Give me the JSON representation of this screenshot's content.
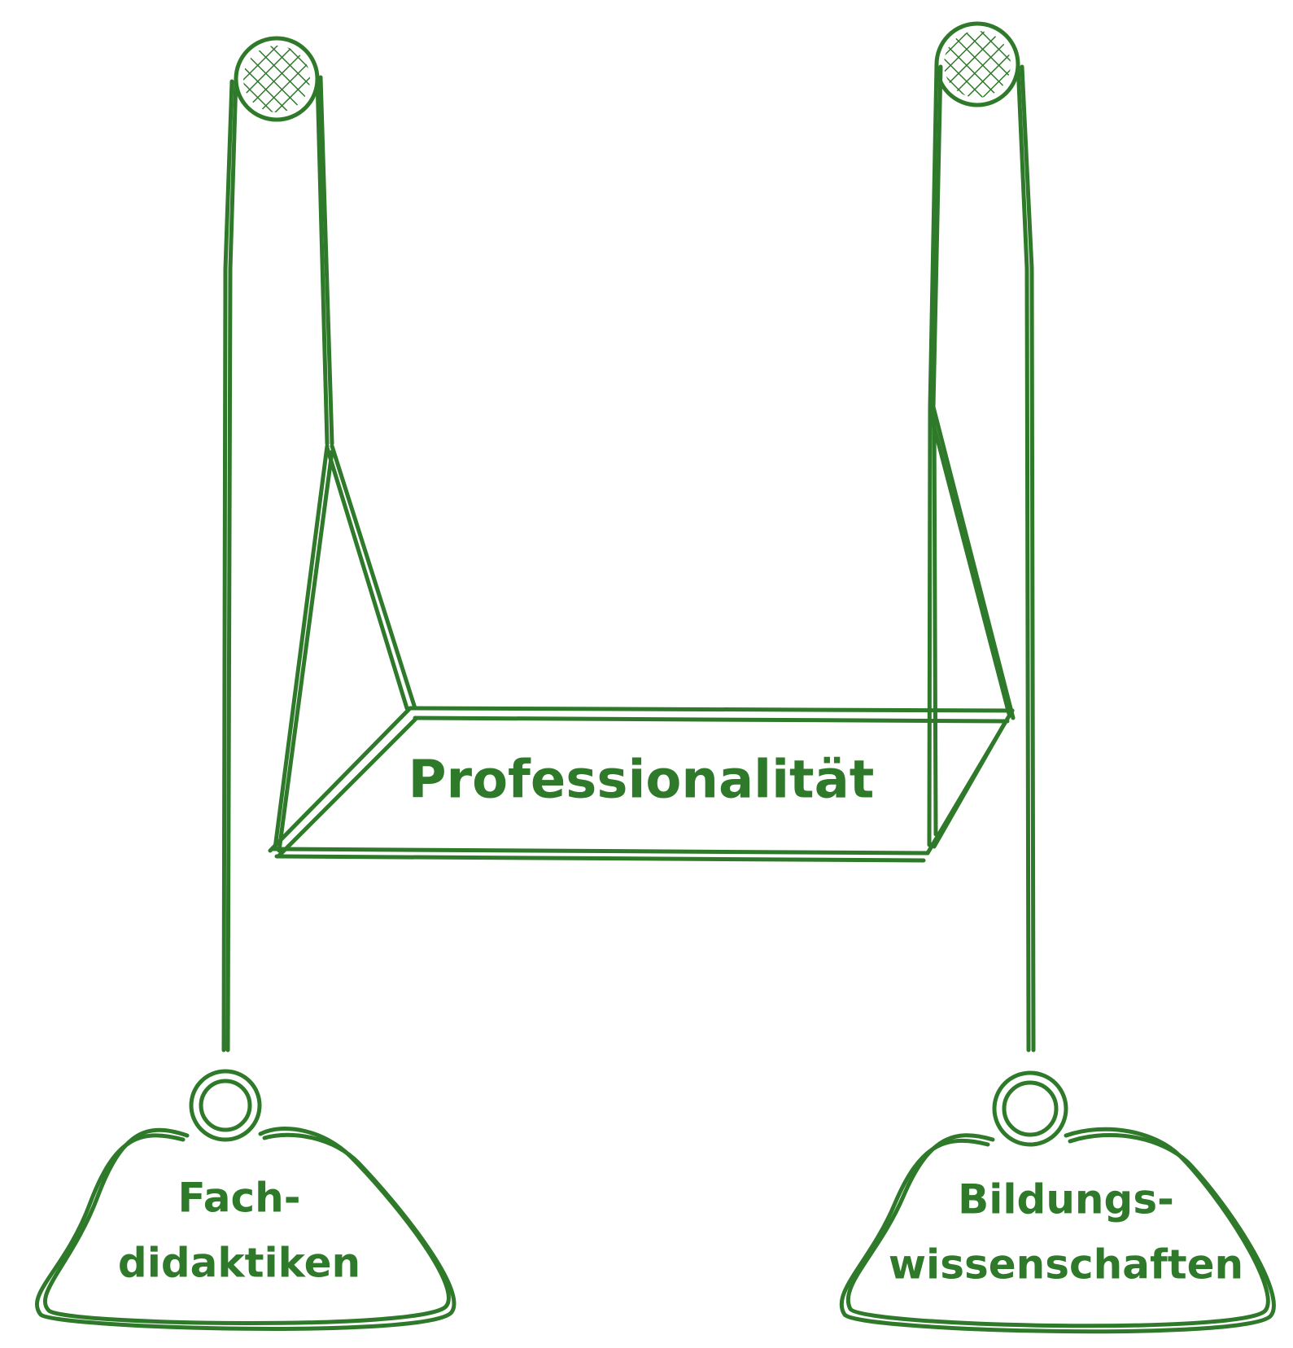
{
  "colors": {
    "stroke": "#2f7a2a",
    "text": "#2f7a2a",
    "background": "#ffffff"
  },
  "swing": {
    "seat_label": "Professionalität"
  },
  "weights": {
    "left": {
      "line1": "Fach-",
      "line2": "didaktiken"
    },
    "right": {
      "line1": "Bildungs-",
      "line2": "wissenschaften"
    }
  }
}
